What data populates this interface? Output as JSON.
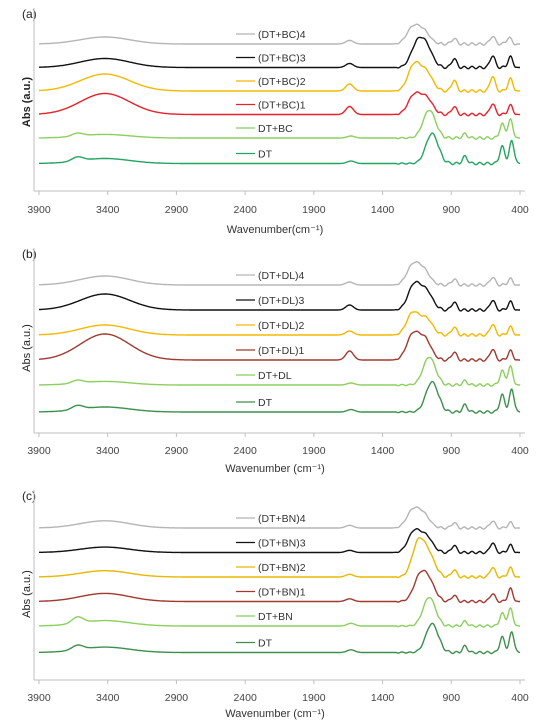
{
  "chart_data": [
    {
      "type": "line",
      "panel_label": "(a)",
      "xlabel": "Wavenumber(cm⁻¹)",
      "ylabel": "Abs (a.u.)",
      "ylabel_bold": true,
      "xlim": [
        3900,
        400
      ],
      "xticks": [
        3900,
        3400,
        2900,
        2400,
        1900,
        1400,
        900,
        400
      ],
      "grid": false,
      "legend": "inline-labels",
      "series": [
        {
          "name": "(DT+BC)4",
          "color": "#b5b5b5",
          "style": "plain",
          "peaks": [
            [
              3420,
              0.35
            ],
            [
              1640,
              0.18
            ],
            [
              1180,
              0.8
            ],
            [
              1100,
              0.6
            ],
            [
              880,
              0.28
            ],
            [
              600,
              0.4
            ],
            [
              480,
              0.32
            ]
          ]
        },
        {
          "name": "(DT+BC)3",
          "color": "#111111",
          "style": "plain",
          "peaks": [
            [
              3420,
              0.45
            ],
            [
              1640,
              0.2
            ],
            [
              1150,
              1.1
            ],
            [
              1080,
              0.95
            ],
            [
              880,
              0.45
            ],
            [
              600,
              0.6
            ],
            [
              470,
              0.52
            ]
          ]
        },
        {
          "name": "(DT+BC)2",
          "color": "#f5b800",
          "style": "plain",
          "peaks": [
            [
              3420,
              0.85
            ],
            [
              1640,
              0.35
            ],
            [
              1170,
              1.3
            ],
            [
              1080,
              0.9
            ],
            [
              880,
              0.55
            ],
            [
              600,
              0.75
            ],
            [
              470,
              0.6
            ]
          ]
        },
        {
          "name": "(DT+BC)1",
          "color": "#e8212b",
          "style": "plain",
          "peaks": [
            [
              3420,
              1.05
            ],
            [
              1640,
              0.4
            ],
            [
              1170,
              0.95
            ],
            [
              1080,
              0.8
            ],
            [
              880,
              0.4
            ],
            [
              600,
              0.55
            ],
            [
              470,
              0.45
            ]
          ]
        },
        {
          "name": "DT+BC",
          "color": "#8ccf5e",
          "style": "dt",
          "peaks": [
            [
              3620,
              0.15
            ],
            [
              3420,
              0.18
            ],
            [
              1630,
              0.1
            ],
            [
              1060,
              1.4
            ],
            [
              800,
              0.2
            ],
            [
              530,
              0.7
            ],
            [
              470,
              0.9
            ]
          ]
        },
        {
          "name": "DT",
          "color": "#23a561",
          "style": "dt",
          "peaks": [
            [
              3620,
              0.2
            ],
            [
              3420,
              0.25
            ],
            [
              1630,
              0.12
            ],
            [
              1040,
              1.5
            ],
            [
              800,
              0.35
            ],
            [
              530,
              0.85
            ],
            [
              460,
              1.1
            ]
          ]
        }
      ]
    },
    {
      "type": "line",
      "panel_label": "(b)",
      "xlabel": "Wavenumber (cm⁻¹)",
      "ylabel": "Abs (a.u.)",
      "ylabel_bold": false,
      "xlim": [
        3900,
        400
      ],
      "xticks": [
        3900,
        3400,
        2900,
        2400,
        1900,
        1400,
        900,
        400
      ],
      "grid": false,
      "legend": "inline-labels",
      "series": [
        {
          "name": "(DT+DL)4",
          "color": "#b5b5b5",
          "style": "plain",
          "peaks": [
            [
              3420,
              0.45
            ],
            [
              1640,
              0.15
            ],
            [
              1180,
              0.95
            ],
            [
              1100,
              0.7
            ],
            [
              880,
              0.3
            ],
            [
              600,
              0.4
            ],
            [
              470,
              0.3
            ]
          ]
        },
        {
          "name": "(DT+DL)3",
          "color": "#111111",
          "style": "plain",
          "peaks": [
            [
              3420,
              0.8
            ],
            [
              1640,
              0.25
            ],
            [
              1170,
              1.25
            ],
            [
              1080,
              0.9
            ],
            [
              880,
              0.4
            ],
            [
              600,
              0.5
            ],
            [
              470,
              0.4
            ]
          ]
        },
        {
          "name": "(DT+DL)2",
          "color": "#f5b800",
          "style": "plain",
          "peaks": [
            [
              3420,
              0.5
            ],
            [
              1640,
              0.2
            ],
            [
              1180,
              1.1
            ],
            [
              1080,
              0.8
            ],
            [
              880,
              0.4
            ],
            [
              600,
              0.55
            ],
            [
              470,
              0.4
            ]
          ]
        },
        {
          "name": "(DT+DL)1",
          "color": "#a0392f",
          "style": "plain",
          "peaks": [
            [
              3420,
              1.3
            ],
            [
              1640,
              0.45
            ],
            [
              1180,
              1.25
            ],
            [
              1090,
              1.0
            ],
            [
              880,
              0.4
            ],
            [
              600,
              0.55
            ],
            [
              470,
              0.45
            ]
          ]
        },
        {
          "name": "DT+DL",
          "color": "#8ccf5e",
          "style": "dt",
          "peaks": [
            [
              3620,
              0.15
            ],
            [
              3420,
              0.18
            ],
            [
              1630,
              0.1
            ],
            [
              1060,
              1.4
            ],
            [
              800,
              0.2
            ],
            [
              530,
              0.7
            ],
            [
              470,
              0.9
            ]
          ]
        },
        {
          "name": "DT",
          "color": "#3e8f4e",
          "style": "dt",
          "peaks": [
            [
              3620,
              0.2
            ],
            [
              3420,
              0.25
            ],
            [
              1630,
              0.12
            ],
            [
              1040,
              1.5
            ],
            [
              800,
              0.35
            ],
            [
              530,
              0.85
            ],
            [
              460,
              1.1
            ]
          ]
        }
      ]
    },
    {
      "type": "line",
      "panel_label": "(c)",
      "xlabel": "Wavenumber (cm⁻¹)",
      "ylabel": "Abs (a.u.)",
      "ylabel_bold": false,
      "xlim": [
        3900,
        400
      ],
      "xticks": [
        3900,
        3400,
        2900,
        2400,
        1900,
        1400,
        900,
        400
      ],
      "grid": false,
      "legend": "inline-labels",
      "series": [
        {
          "name": "(DT+BN)4",
          "color": "#b5b5b5",
          "style": "plain",
          "peaks": [
            [
              3420,
              0.4
            ],
            [
              1640,
              0.15
            ],
            [
              1180,
              0.95
            ],
            [
              1100,
              0.7
            ],
            [
              880,
              0.3
            ],
            [
              600,
              0.4
            ],
            [
              470,
              0.3
            ]
          ]
        },
        {
          "name": "(DT+BN)3",
          "color": "#111111",
          "style": "plain",
          "peaks": [
            [
              3420,
              0.3
            ],
            [
              1640,
              0.12
            ],
            [
              1170,
              1.15
            ],
            [
              1080,
              0.85
            ],
            [
              880,
              0.4
            ],
            [
              600,
              0.55
            ],
            [
              470,
              0.4
            ]
          ]
        },
        {
          "name": "(DT+BN)2",
          "color": "#e8b800",
          "style": "plain",
          "peaks": [
            [
              3420,
              0.35
            ],
            [
              1640,
              0.15
            ],
            [
              1140,
              1.9
            ],
            [
              1060,
              1.1
            ],
            [
              880,
              0.4
            ],
            [
              600,
              0.55
            ],
            [
              470,
              0.5
            ]
          ]
        },
        {
          "name": "(DT+BN)1",
          "color": "#a0392f",
          "style": "plain",
          "peaks": [
            [
              3420,
              0.45
            ],
            [
              1640,
              0.15
            ],
            [
              1130,
              1.3
            ],
            [
              1060,
              1.0
            ],
            [
              880,
              0.35
            ],
            [
              600,
              0.45
            ],
            [
              470,
              0.7
            ]
          ]
        },
        {
          "name": "DT+BN",
          "color": "#8ccf5e",
          "style": "dt",
          "peaks": [
            [
              3620,
              0.35
            ],
            [
              3420,
              0.3
            ],
            [
              1630,
              0.15
            ],
            [
              1060,
              1.6
            ],
            [
              800,
              0.25
            ],
            [
              530,
              0.7
            ],
            [
              470,
              0.95
            ]
          ]
        },
        {
          "name": "DT",
          "color": "#3e8f4e",
          "style": "dt",
          "peaks": [
            [
              3620,
              0.25
            ],
            [
              3420,
              0.3
            ],
            [
              1630,
              0.15
            ],
            [
              1040,
              1.6
            ],
            [
              800,
              0.35
            ],
            [
              530,
              0.85
            ],
            [
              460,
              1.1
            ]
          ]
        }
      ]
    }
  ]
}
